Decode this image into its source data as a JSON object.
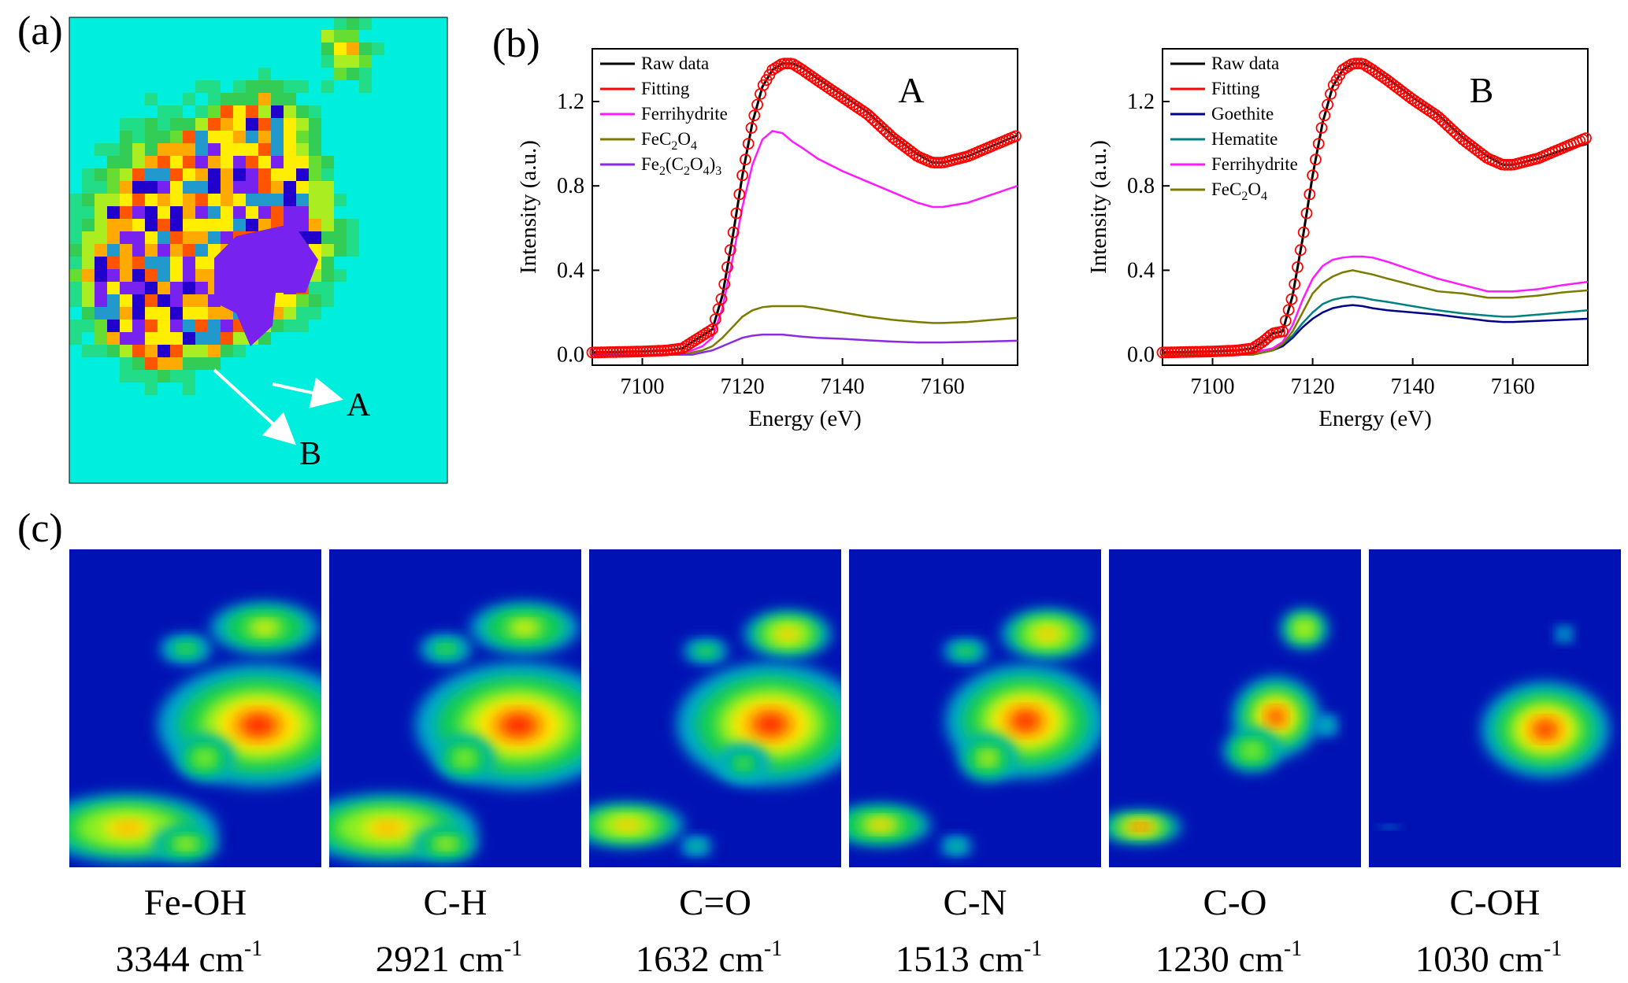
{
  "panel_labels": {
    "a": "(a)",
    "b": "(b)",
    "c": "(c)"
  },
  "panel_a": {
    "arrows": [
      {
        "label": "A",
        "name": "arrow-a"
      },
      {
        "label": "B",
        "name": "arrow-b"
      }
    ]
  },
  "chart_data": [
    {
      "type": "line",
      "title": "A",
      "xlabel": "Energy (eV)",
      "ylabel": "Intensity (a.u.)",
      "xlim": [
        7090,
        7175
      ],
      "ylim": [
        -0.05,
        1.45
      ],
      "xticks": [
        "7100",
        "7120",
        "7140",
        "7160"
      ],
      "yticks": [
        "0.0",
        "0.4",
        "0.8",
        "1.2"
      ],
      "x": [
        7090,
        7100,
        7105,
        7108,
        7110,
        7112,
        7114,
        7116,
        7118,
        7120,
        7122,
        7124,
        7126,
        7128,
        7130,
        7132,
        7135,
        7140,
        7145,
        7150,
        7155,
        7158,
        7160,
        7165,
        7170,
        7175
      ],
      "series": [
        {
          "name": "Raw data",
          "color": "#000000",
          "values": [
            0.01,
            0.015,
            0.02,
            0.03,
            0.06,
            0.09,
            0.12,
            0.28,
            0.55,
            0.85,
            1.1,
            1.27,
            1.35,
            1.38,
            1.38,
            1.36,
            1.31,
            1.23,
            1.15,
            1.04,
            0.95,
            0.91,
            0.91,
            0.94,
            0.99,
            1.04
          ]
        },
        {
          "name": "Fitting",
          "color": "#ff0000",
          "values": [
            0.01,
            0.015,
            0.02,
            0.03,
            0.06,
            0.09,
            0.12,
            0.28,
            0.55,
            0.85,
            1.1,
            1.27,
            1.35,
            1.38,
            1.38,
            1.35,
            1.3,
            1.22,
            1.14,
            1.03,
            0.94,
            0.91,
            0.91,
            0.94,
            0.99,
            1.04
          ]
        },
        {
          "name": "Ferrihydrite",
          "color": "#ff1aff",
          "values": [
            0.0,
            0.0,
            0.0,
            0.01,
            0.02,
            0.04,
            0.08,
            0.22,
            0.45,
            0.7,
            0.9,
            1.02,
            1.06,
            1.05,
            1.01,
            0.98,
            0.93,
            0.87,
            0.82,
            0.77,
            0.72,
            0.7,
            0.7,
            0.72,
            0.76,
            0.8
          ]
        },
        {
          "name": "FeC2O4",
          "color": "#7b7b00",
          "values": [
            0.0,
            0.0,
            0.0,
            0.0,
            0.01,
            0.02,
            0.04,
            0.08,
            0.13,
            0.18,
            0.21,
            0.225,
            0.23,
            0.23,
            0.23,
            0.23,
            0.22,
            0.2,
            0.18,
            0.165,
            0.155,
            0.15,
            0.15,
            0.155,
            0.165,
            0.175
          ]
        },
        {
          "name": "Fe2(C2O4)3",
          "color": "#8a2be2",
          "values": [
            0.0,
            0.0,
            0.0,
            0.0,
            0.0,
            0.01,
            0.02,
            0.04,
            0.06,
            0.08,
            0.09,
            0.095,
            0.095,
            0.095,
            0.09,
            0.085,
            0.08,
            0.075,
            0.068,
            0.062,
            0.058,
            0.058,
            0.058,
            0.06,
            0.063,
            0.066
          ]
        }
      ],
      "legend": [
        {
          "main": "Raw data",
          "sub": []
        },
        {
          "main": "Fitting",
          "sub": []
        },
        {
          "main": "Ferrihydrite",
          "sub": []
        },
        {
          "main": "FeC2O4",
          "sub": [
            [
              "FeC",
              ""
            ],
            [
              "2",
              "sub"
            ],
            [
              "O",
              ""
            ],
            [
              "4",
              "sub"
            ]
          ]
        },
        {
          "main": "Fe2(C2O4)3",
          "sub": [
            [
              "Fe",
              ""
            ],
            [
              "2",
              "sub"
            ],
            [
              "(C",
              ""
            ],
            [
              "2",
              "sub"
            ],
            [
              "O",
              ""
            ],
            [
              "4",
              "sub"
            ],
            [
              ")",
              ""
            ],
            [
              "3",
              "sub"
            ]
          ]
        }
      ]
    },
    {
      "type": "line",
      "title": "B",
      "xlabel": "Energy (eV)",
      "ylabel": "Intensity (a.u.)",
      "xlim": [
        7090,
        7175
      ],
      "ylim": [
        -0.05,
        1.45
      ],
      "xticks": [
        "7100",
        "7120",
        "7140",
        "7160"
      ],
      "yticks": [
        "0.0",
        "0.4",
        "0.8",
        "1.2"
      ],
      "x": [
        7090,
        7100,
        7105,
        7108,
        7110,
        7112,
        7114,
        7116,
        7118,
        7120,
        7122,
        7124,
        7126,
        7128,
        7130,
        7132,
        7135,
        7140,
        7145,
        7150,
        7155,
        7158,
        7160,
        7165,
        7170,
        7175
      ],
      "series": [
        {
          "name": "Raw data",
          "color": "#000000",
          "values": [
            0.01,
            0.015,
            0.02,
            0.03,
            0.06,
            0.1,
            0.11,
            0.28,
            0.55,
            0.85,
            1.1,
            1.27,
            1.35,
            1.38,
            1.38,
            1.36,
            1.31,
            1.22,
            1.14,
            1.03,
            0.94,
            0.9,
            0.9,
            0.93,
            0.97,
            1.0
          ]
        },
        {
          "name": "Fitting",
          "color": "#ff0000",
          "values": [
            0.01,
            0.015,
            0.02,
            0.03,
            0.06,
            0.1,
            0.11,
            0.28,
            0.55,
            0.85,
            1.1,
            1.27,
            1.35,
            1.38,
            1.38,
            1.35,
            1.3,
            1.21,
            1.13,
            1.02,
            0.93,
            0.9,
            0.9,
            0.93,
            0.98,
            1.03
          ]
        },
        {
          "name": "Goethite",
          "color": "#00008b",
          "values": [
            0.0,
            0.0,
            0.0,
            0.0,
            0.01,
            0.02,
            0.04,
            0.08,
            0.13,
            0.17,
            0.2,
            0.22,
            0.23,
            0.235,
            0.23,
            0.22,
            0.21,
            0.2,
            0.19,
            0.175,
            0.16,
            0.155,
            0.155,
            0.16,
            0.165,
            0.17
          ]
        },
        {
          "name": "Hematite",
          "color": "#008080",
          "values": [
            0.0,
            0.0,
            0.0,
            0.0,
            0.01,
            0.02,
            0.05,
            0.09,
            0.15,
            0.2,
            0.24,
            0.26,
            0.27,
            0.275,
            0.27,
            0.26,
            0.25,
            0.23,
            0.21,
            0.195,
            0.185,
            0.18,
            0.18,
            0.19,
            0.2,
            0.21
          ]
        },
        {
          "name": "Ferrihydrite",
          "color": "#ff1aff",
          "values": [
            0.0,
            0.0,
            0.0,
            0.01,
            0.02,
            0.03,
            0.06,
            0.14,
            0.26,
            0.36,
            0.42,
            0.45,
            0.46,
            0.465,
            0.465,
            0.46,
            0.44,
            0.4,
            0.36,
            0.33,
            0.3,
            0.3,
            0.3,
            0.31,
            0.33,
            0.345
          ]
        },
        {
          "name": "FeC2O4",
          "color": "#7b7b00",
          "values": [
            0.0,
            0.0,
            0.0,
            0.0,
            0.01,
            0.02,
            0.05,
            0.11,
            0.2,
            0.29,
            0.34,
            0.37,
            0.39,
            0.4,
            0.39,
            0.38,
            0.36,
            0.33,
            0.3,
            0.29,
            0.27,
            0.27,
            0.27,
            0.28,
            0.295,
            0.305
          ]
        }
      ],
      "legend": [
        {
          "main": "Raw data",
          "sub": []
        },
        {
          "main": "Fitting",
          "sub": []
        },
        {
          "main": "Goethite",
          "sub": []
        },
        {
          "main": "Hematite",
          "sub": []
        },
        {
          "main": "Ferrihydrite",
          "sub": []
        },
        {
          "main": "FeC2O4",
          "sub": [
            [
              "FeC",
              ""
            ],
            [
              "2",
              "sub"
            ],
            [
              "O",
              ""
            ],
            [
              "4",
              "sub"
            ]
          ]
        }
      ]
    }
  ],
  "panel_c": {
    "maps": [
      {
        "group": "Fe-OH",
        "wavenumber": "3344 cm",
        "unit_sup": "-1"
      },
      {
        "group": "C-H",
        "wavenumber": "2921 cm",
        "unit_sup": "-1"
      },
      {
        "group": "C=O",
        "wavenumber": "1632 cm",
        "unit_sup": "-1"
      },
      {
        "group": "C-N",
        "wavenumber": "1513 cm",
        "unit_sup": "-1"
      },
      {
        "group": "C-O",
        "wavenumber": "1230 cm",
        "unit_sup": "-1"
      },
      {
        "group": "C-OH",
        "wavenumber": "1030 cm",
        "unit_sup": "-1"
      }
    ]
  },
  "colors": {
    "map_background": "#00eedd",
    "ir_background": "#0012b4"
  }
}
